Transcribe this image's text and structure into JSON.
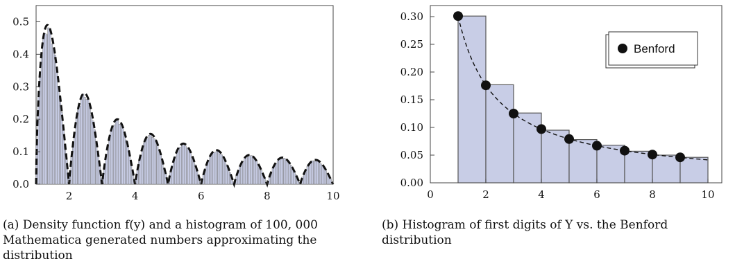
{
  "chart_data": [
    {
      "type": "bar",
      "description_source": "printed caption",
      "caption": "(a) Density function f(y) and a histogram of 100, 000 Mathematica generated numbers approximating the distribution",
      "xlim": [
        1,
        10
      ],
      "ylim": [
        0,
        0.55
      ],
      "x_ticks": [
        2,
        4,
        6,
        8,
        10
      ],
      "y_ticks": [
        0.0,
        0.1,
        0.2,
        0.3,
        0.4,
        0.5
      ],
      "x_tick_labels": [
        "2",
        "4",
        "6",
        "8",
        "10"
      ],
      "y_tick_labels": [
        "0.0",
        "0.1",
        "0.2",
        "0.3",
        "0.4",
        "0.5"
      ],
      "curve": {
        "style": "dashed",
        "hump_peaks": [
          {
            "x": 1.4,
            "y": 0.49
          },
          {
            "x": 2.45,
            "y": 0.28
          },
          {
            "x": 3.45,
            "y": 0.2
          },
          {
            "x": 4.45,
            "y": 0.155
          },
          {
            "x": 5.45,
            "y": 0.125
          },
          {
            "x": 6.45,
            "y": 0.105
          },
          {
            "x": 7.45,
            "y": 0.09
          },
          {
            "x": 8.5,
            "y": 0.082
          },
          {
            "x": 9.45,
            "y": 0.075
          }
        ],
        "zeros": [
          1,
          2,
          3,
          4,
          5,
          6,
          7,
          8,
          9,
          10
        ]
      },
      "histogram": {
        "bin_width": 0.05,
        "fill": "#c8cde6",
        "edge": "#777777"
      },
      "grid": false
    },
    {
      "type": "bar",
      "caption": "(b) Histogram of first digits of Y vs. the Benford distribution",
      "xlim": [
        0,
        10.5
      ],
      "ylim": [
        0,
        0.32
      ],
      "x_ticks": [
        0,
        2,
        4,
        6,
        8,
        10
      ],
      "y_ticks": [
        0.0,
        0.05,
        0.1,
        0.15,
        0.2,
        0.25,
        0.3
      ],
      "x_tick_labels": [
        "0",
        "2",
        "4",
        "6",
        "8",
        "10"
      ],
      "y_tick_labels": [
        "0.00",
        "0.05",
        "0.10",
        "0.15",
        "0.20",
        "0.25",
        "0.30"
      ],
      "bars": [
        {
          "x0": 1,
          "x1": 2,
          "value": 0.301
        },
        {
          "x0": 2,
          "x1": 3,
          "value": 0.177
        },
        {
          "x0": 3,
          "x1": 4,
          "value": 0.126
        },
        {
          "x0": 4,
          "x1": 5,
          "value": 0.095
        },
        {
          "x0": 5,
          "x1": 6,
          "value": 0.078
        },
        {
          "x0": 6,
          "x1": 7,
          "value": 0.068
        },
        {
          "x0": 7,
          "x1": 8,
          "value": 0.057
        },
        {
          "x0": 8,
          "x1": 9,
          "value": 0.05
        },
        {
          "x0": 9,
          "x1": 10,
          "value": 0.046
        }
      ],
      "series": [
        {
          "name": "Benford",
          "x": [
            1,
            2,
            3,
            4,
            5,
            6,
            7,
            8,
            9
          ],
          "values": [
            0.301,
            0.176,
            0.125,
            0.097,
            0.079,
            0.067,
            0.058,
            0.051,
            0.046
          ]
        }
      ],
      "legend": {
        "label": "Benford",
        "placement": "top-right"
      },
      "bar_fill": "#c8cde6",
      "bar_edge": "#555555",
      "grid": false
    }
  ]
}
